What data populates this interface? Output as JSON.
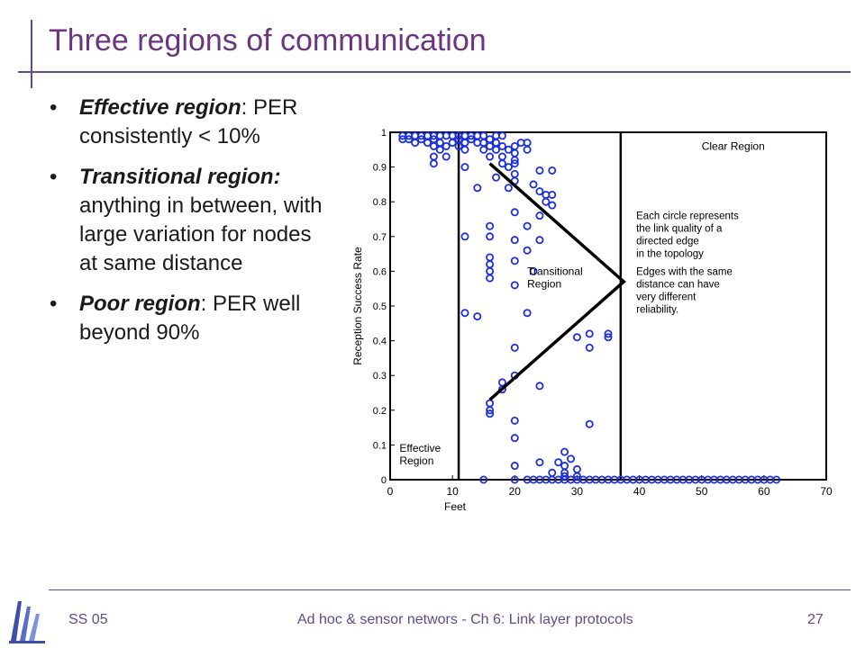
{
  "slide": {
    "title": "Three regions of communication",
    "bullets": [
      {
        "bullet": "•",
        "term": "Effective region",
        "sep": ":",
        "text": " PER consistently < 10%"
      },
      {
        "bullet": "•",
        "term": "Transitional region:",
        "sep": "",
        "text": " anything in between, with large variation for nodes at same distance"
      },
      {
        "bullet": "•",
        "term": "Poor region",
        "sep": ":",
        "text": " PER well beyond 90%"
      }
    ],
    "footer": {
      "left": "SS 05",
      "center": "Ad hoc & sensor networs - Ch 6: Link layer protocols",
      "page": "27"
    },
    "logo_icon": "university-logo-icon",
    "colors": {
      "title": "#6b3580",
      "accent": "#5e4a8c",
      "marker": "#1c2fe0"
    }
  },
  "chart_data": {
    "type": "scatter",
    "xlabel": "Feet",
    "ylabel": "Reception Success Rate",
    "xlim": [
      0,
      70
    ],
    "ylim": [
      0,
      1
    ],
    "xticks": [
      0,
      10,
      20,
      30,
      40,
      50,
      60,
      70
    ],
    "yticks": [
      0,
      0.1,
      0.2,
      0.3,
      0.4,
      0.5,
      0.6,
      0.7,
      0.8,
      0.9,
      1
    ],
    "region_boundaries_x": [
      11,
      37
    ],
    "region_labels": [
      {
        "text": [
          "Effective",
          "Region"
        ],
        "x": 1.5,
        "y": 0.08
      },
      {
        "text": [
          "Transitional",
          "Region"
        ],
        "x": 22,
        "y": 0.59
      },
      {
        "text": [
          "Clear Region"
        ],
        "x": 50,
        "y": 0.95
      }
    ],
    "annotation": [
      "Each circle represents",
      "the link quality of a",
      "directed edge",
      "in the topology",
      "Edges with the same",
      "distance can have",
      "very different",
      "reliability."
    ],
    "arrow": [
      [
        16,
        0.91
      ],
      [
        37.5,
        0.57
      ],
      [
        16,
        0.23
      ]
    ],
    "points": [
      [
        2,
        0.99
      ],
      [
        2,
        0.98
      ],
      [
        3,
        0.99
      ],
      [
        3,
        0.98
      ],
      [
        4,
        0.99
      ],
      [
        4,
        0.97
      ],
      [
        5,
        0.99
      ],
      [
        5,
        0.98
      ],
      [
        6,
        0.99
      ],
      [
        6,
        0.97
      ],
      [
        7,
        0.99
      ],
      [
        7,
        0.98
      ],
      [
        7,
        0.96
      ],
      [
        8,
        0.99
      ],
      [
        8,
        0.97
      ],
      [
        8,
        0.95
      ],
      [
        9,
        0.99
      ],
      [
        9,
        0.96
      ],
      [
        10,
        0.99
      ],
      [
        10,
        0.97
      ],
      [
        11,
        0.99
      ],
      [
        11,
        0.98
      ],
      [
        11,
        0.96
      ],
      [
        12,
        0.99
      ],
      [
        12,
        0.97
      ],
      [
        13,
        0.99
      ],
      [
        13,
        0.98
      ],
      [
        14,
        0.99
      ],
      [
        14,
        0.97
      ],
      [
        7,
        0.93
      ],
      [
        7,
        0.91
      ],
      [
        9,
        0.93
      ],
      [
        12,
        0.95
      ],
      [
        15,
        0.99
      ],
      [
        15,
        0.97
      ],
      [
        15,
        0.95
      ],
      [
        16,
        0.98
      ],
      [
        16,
        0.96
      ],
      [
        17,
        0.99
      ],
      [
        17,
        0.97
      ],
      [
        17,
        0.95
      ],
      [
        18,
        0.99
      ],
      [
        18,
        0.96
      ],
      [
        18,
        0.93
      ],
      [
        19,
        0.95
      ],
      [
        20,
        0.96
      ],
      [
        20,
        0.94
      ],
      [
        20,
        0.92
      ],
      [
        21,
        0.97
      ],
      [
        22,
        0.97
      ],
      [
        22,
        0.95
      ],
      [
        12,
        0.9
      ],
      [
        16,
        0.93
      ],
      [
        18,
        0.91
      ],
      [
        19,
        0.9
      ],
      [
        20,
        0.91
      ],
      [
        20,
        0.88
      ],
      [
        20,
        0.86
      ],
      [
        17,
        0.87
      ],
      [
        24,
        0.89
      ],
      [
        26,
        0.89
      ],
      [
        14,
        0.84
      ],
      [
        19,
        0.84
      ],
      [
        23,
        0.85
      ],
      [
        24,
        0.83
      ],
      [
        25,
        0.82
      ],
      [
        26,
        0.82
      ],
      [
        25,
        0.8
      ],
      [
        26,
        0.79
      ],
      [
        20,
        0.77
      ],
      [
        24,
        0.76
      ],
      [
        16,
        0.73
      ],
      [
        22,
        0.73
      ],
      [
        12,
        0.7
      ],
      [
        16,
        0.7
      ],
      [
        20,
        0.69
      ],
      [
        24,
        0.69
      ],
      [
        22,
        0.66
      ],
      [
        16,
        0.64
      ],
      [
        16,
        0.62
      ],
      [
        20,
        0.63
      ],
      [
        16,
        0.6
      ],
      [
        23,
        0.6
      ],
      [
        16,
        0.58
      ],
      [
        20,
        0.56
      ],
      [
        12,
        0.48
      ],
      [
        14,
        0.47
      ],
      [
        22,
        0.48
      ],
      [
        30,
        0.41
      ],
      [
        32,
        0.42
      ],
      [
        35,
        0.41
      ],
      [
        35,
        0.42
      ],
      [
        20,
        0.38
      ],
      [
        32,
        0.38
      ],
      [
        20,
        0.3
      ],
      [
        18,
        0.28
      ],
      [
        18,
        0.26
      ],
      [
        24,
        0.27
      ],
      [
        16,
        0.22
      ],
      [
        16,
        0.2
      ],
      [
        16,
        0.19
      ],
      [
        20,
        0.17
      ],
      [
        32,
        0.16
      ],
      [
        20,
        0.12
      ],
      [
        28,
        0.08
      ],
      [
        29,
        0.06
      ],
      [
        27,
        0.05
      ],
      [
        24,
        0.05
      ],
      [
        20,
        0.04
      ],
      [
        28,
        0.04
      ],
      [
        30,
        0.03
      ],
      [
        26,
        0.02
      ],
      [
        28,
        0.02
      ],
      [
        28,
        0.01
      ],
      [
        30,
        0.01
      ],
      [
        15,
        0
      ],
      [
        20,
        0
      ],
      [
        22,
        0
      ],
      [
        23,
        0
      ],
      [
        24,
        0
      ],
      [
        25,
        0
      ],
      [
        26,
        0
      ],
      [
        27,
        0
      ],
      [
        28,
        0
      ],
      [
        29,
        0
      ],
      [
        30,
        0
      ],
      [
        31,
        0
      ],
      [
        32,
        0
      ],
      [
        33,
        0
      ],
      [
        34,
        0
      ],
      [
        35,
        0
      ],
      [
        36,
        0
      ],
      [
        37,
        0
      ],
      [
        38,
        0
      ],
      [
        39,
        0
      ],
      [
        40,
        0
      ],
      [
        41,
        0
      ],
      [
        42,
        0
      ],
      [
        43,
        0
      ],
      [
        44,
        0
      ],
      [
        45,
        0
      ],
      [
        46,
        0
      ],
      [
        47,
        0
      ],
      [
        48,
        0
      ],
      [
        49,
        0
      ],
      [
        50,
        0
      ],
      [
        51,
        0
      ],
      [
        52,
        0
      ],
      [
        53,
        0
      ],
      [
        54,
        0
      ],
      [
        55,
        0
      ],
      [
        56,
        0
      ],
      [
        57,
        0
      ],
      [
        58,
        0
      ],
      [
        59,
        0
      ],
      [
        60,
        0
      ],
      [
        61,
        0
      ],
      [
        62,
        0
      ]
    ]
  }
}
